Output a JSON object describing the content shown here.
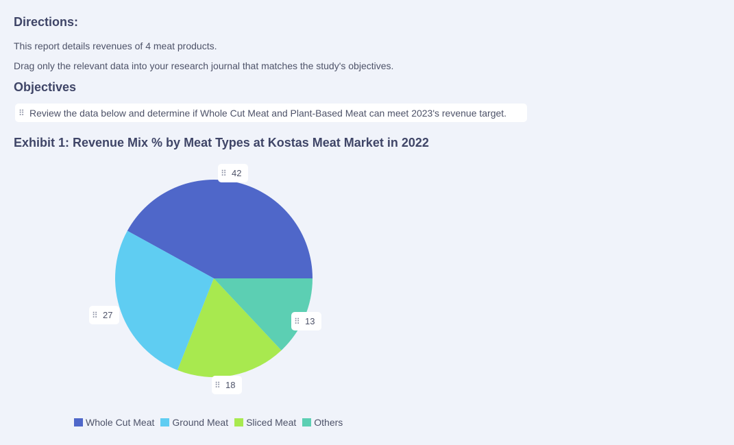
{
  "directions": {
    "heading": "Directions:",
    "line1": "This report details revenues of 4 meat products.",
    "line2": "Drag only the relevant data into your research journal that matches the study's objectives."
  },
  "objectives": {
    "heading": "Objectives",
    "item": "Review the data below and determine if Whole Cut Meat and Plant-Based Meat can meet 2023's revenue target."
  },
  "exhibit": {
    "title": "Exhibit 1: Revenue Mix % by Meat Types at Kostas Meat Market in 2022"
  },
  "colors": {
    "whole_cut": "#4f67c9",
    "ground": "#5fcdf2",
    "sliced": "#a8e94f",
    "others": "#5ccfb3"
  },
  "chart_data": {
    "type": "pie",
    "title": "Exhibit 1: Revenue Mix % by Meat Types at Kostas Meat Market in 2022",
    "categories": [
      "Whole Cut Meat",
      "Ground Meat",
      "Sliced Meat",
      "Others"
    ],
    "values": [
      42,
      27,
      18,
      13
    ],
    "value_labels": [
      "42",
      "27",
      "18",
      "13"
    ],
    "colors": [
      "#4f67c9",
      "#5fcdf2",
      "#a8e94f",
      "#5ccfb3"
    ],
    "legend_position": "bottom"
  },
  "legend": {
    "items": [
      "Whole Cut Meat",
      "Ground Meat",
      "Sliced Meat",
      "Others"
    ]
  }
}
